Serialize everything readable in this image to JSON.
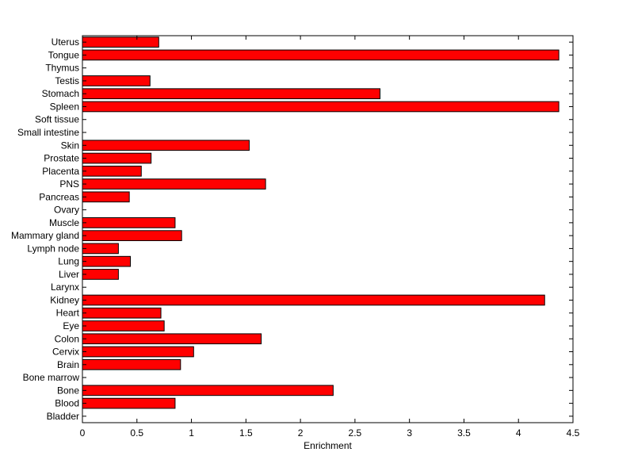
{
  "chart_data": {
    "type": "bar",
    "orientation": "horizontal",
    "title": "",
    "xlabel": "Enrichment",
    "ylabel": "",
    "xlim": [
      0,
      4.5
    ],
    "xticks": [
      0,
      0.5,
      1,
      1.5,
      2,
      2.5,
      3,
      3.5,
      4,
      4.5
    ],
    "xtick_labels": [
      "0",
      "0.5",
      "1",
      "1.5",
      "2",
      "2.5",
      "3",
      "3.5",
      "4",
      "4.5"
    ],
    "grid": false,
    "bar_color": "#ff0000",
    "edge_color": "#000000",
    "categories": [
      "Bladder",
      "Blood",
      "Bone",
      "Bone marrow",
      "Brain",
      "Cervix",
      "Colon",
      "Eye",
      "Heart",
      "Kidney",
      "Larynx",
      "Liver",
      "Lung",
      "Lymph node",
      "Mammary gland",
      "Muscle",
      "Ovary",
      "Pancreas",
      "PNS",
      "Placenta",
      "Prostate",
      "Skin",
      "Small intestine",
      "Soft tissue",
      "Spleen",
      "Stomach",
      "Testis",
      "Thymus",
      "Tongue",
      "Uterus"
    ],
    "values": [
      0,
      0.85,
      2.3,
      0,
      0.9,
      1.02,
      1.64,
      0.75,
      0.72,
      4.24,
      0,
      0.33,
      0.44,
      0.33,
      0.91,
      0.85,
      0,
      0.43,
      1.68,
      0.54,
      0.63,
      1.53,
      0,
      0,
      4.37,
      2.73,
      0.62,
      0,
      4.37,
      0.7
    ]
  }
}
